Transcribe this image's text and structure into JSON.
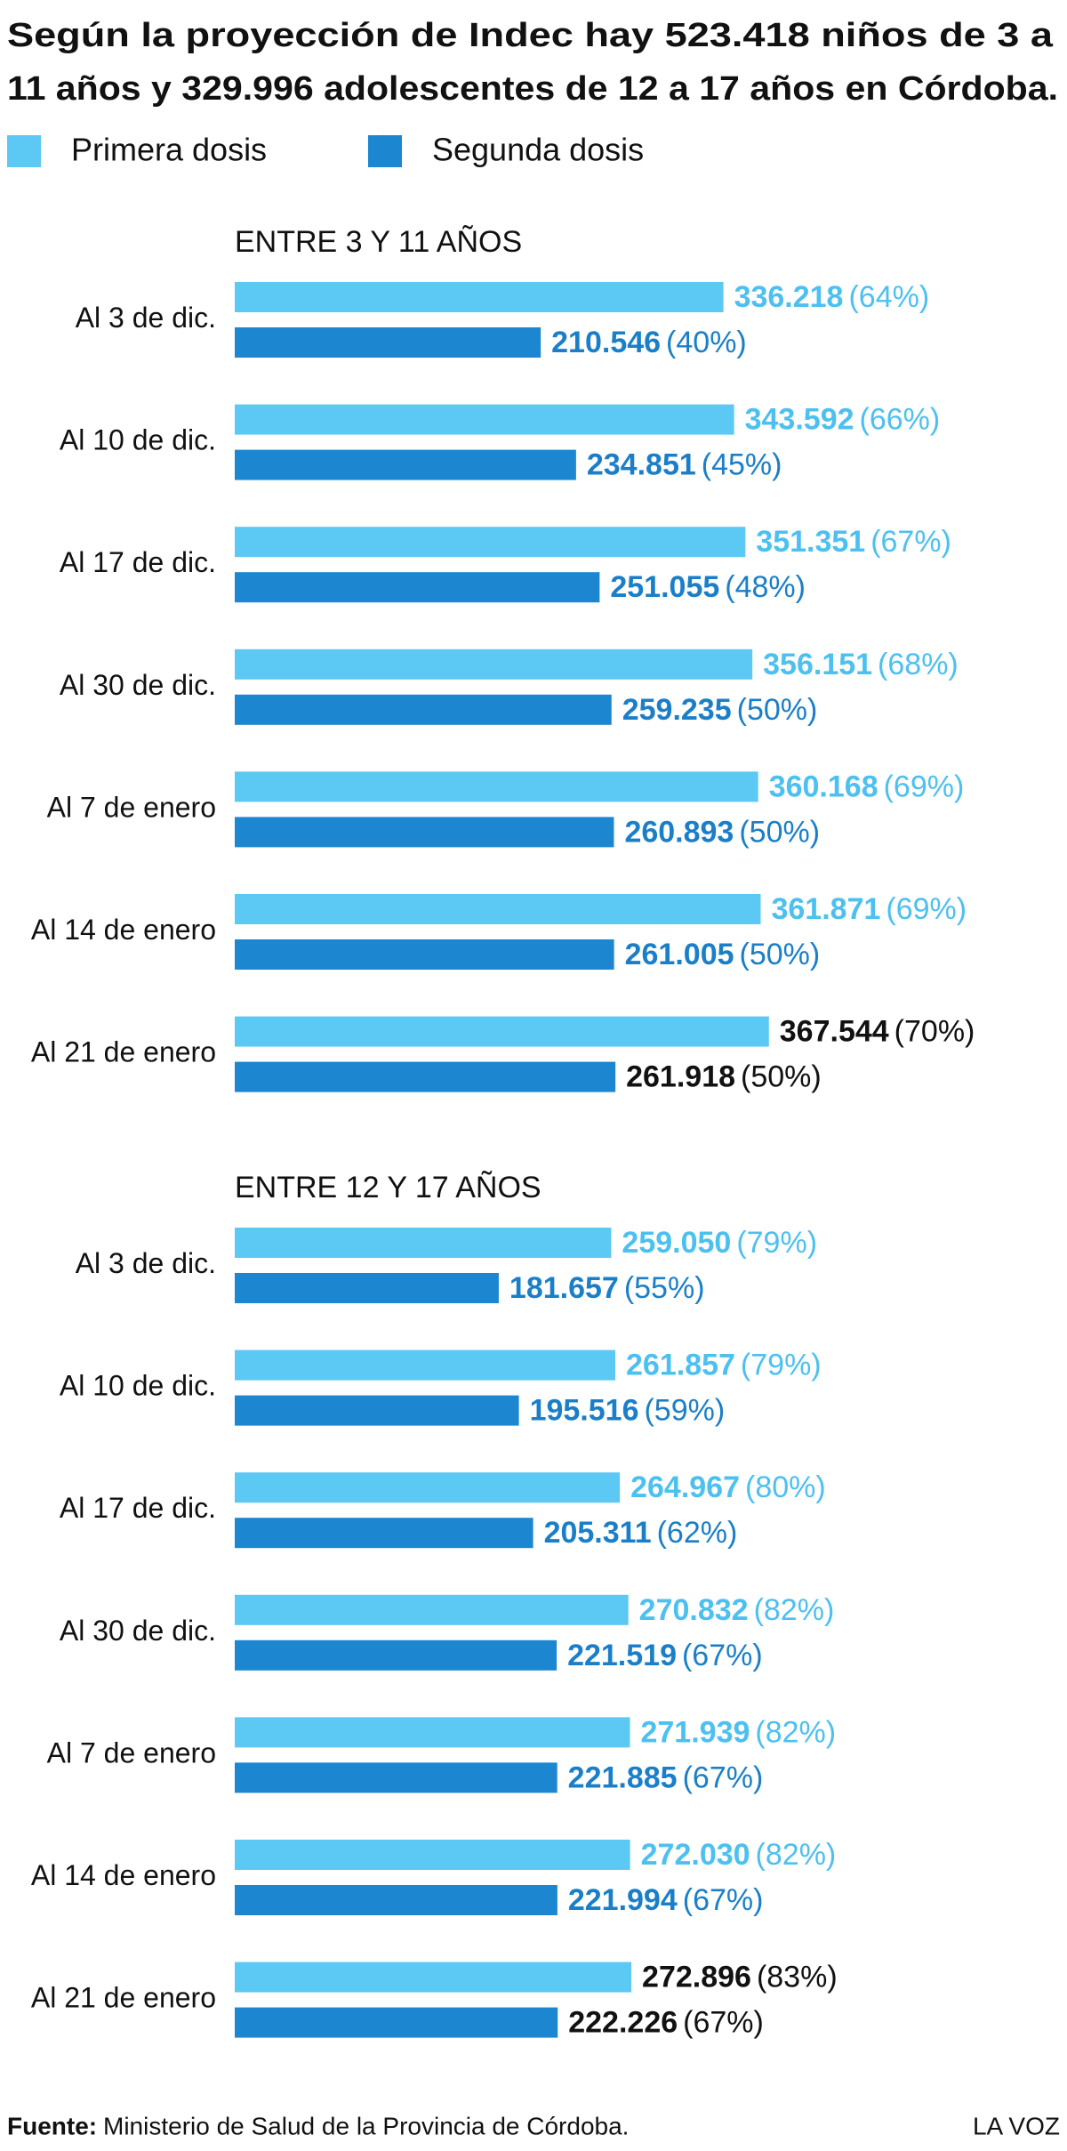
{
  "title_lines": [
    "Según la proyección de Indec hay 523.418 niños de 3 a",
    "11 años y 329.996 adolescentes de 12 a 17 años en Córdoba."
  ],
  "chart_data": [
    {
      "type": "bar",
      "orientation": "horizontal",
      "subtitle": "ENTRE 3 Y 11 AÑOS",
      "categories": [
        "Al 3 de dic.",
        "Al 10 de dic.",
        "Al 17 de dic.",
        "Al 30 de dic.",
        "Al 7 de enero",
        "Al 14 de enero",
        "Al 21 de enero"
      ],
      "xlim": [
        0,
        550000
      ],
      "highlight_index": 6,
      "highlight_color": "#111111",
      "series": [
        {
          "name": "Primera dosis",
          "color": "#5cc8f4",
          "label_color": "#4cc0f0",
          "values": [
            336218,
            343592,
            351351,
            356151,
            360168,
            361871,
            367544
          ],
          "value_labels": [
            "336.218",
            "343.592",
            "351.351",
            "356.151",
            "360.168",
            "361.871",
            "367.544"
          ],
          "share_labels": [
            "(64%)",
            "(66%)",
            "(67%)",
            "(68%)",
            "(69%)",
            "(69%)",
            "(70%)"
          ]
        },
        {
          "name": "Segunda dosis",
          "color": "#1c86d0",
          "label_color": "#1a7fc8",
          "values": [
            210546,
            234851,
            251055,
            259235,
            260893,
            261005,
            261918
          ],
          "value_labels": [
            "210.546",
            "234.851",
            "251.055",
            "259.235",
            "260.893",
            "261.005",
            "261.918"
          ],
          "share_labels": [
            "(40%)",
            "(45%)",
            "(48%)",
            "(50%)",
            "(50%)",
            "(50%)",
            "(50%)"
          ]
        }
      ]
    },
    {
      "type": "bar",
      "orientation": "horizontal",
      "subtitle": "ENTRE 12 Y 17 AÑOS",
      "categories": [
        "Al 3 de dic.",
        "Al 10 de dic.",
        "Al 17 de dic.",
        "Al 30 de dic.",
        "Al 7 de enero",
        "Al 14 de enero",
        "Al 21 de enero"
      ],
      "xlim": [
        0,
        550000
      ],
      "highlight_index": 6,
      "highlight_color": "#111111",
      "series": [
        {
          "color": "#5cc8f4",
          "label_color": "#4cc0f0",
          "values": [
            259050,
            261857,
            264967,
            270832,
            271939,
            272030,
            272896
          ],
          "value_labels": [
            "259.050",
            "261.857",
            "264.967",
            "270.832",
            "271.939",
            "272.030",
            "272.896"
          ],
          "share_labels": [
            "(79%)",
            "(79%)",
            "(80%)",
            "(82%)",
            "(82%)",
            "(82%)",
            "(83%)"
          ]
        },
        {
          "color": "#1c86d0",
          "label_color": "#1a7fc8",
          "values": [
            181657,
            195516,
            205311,
            221519,
            221885,
            221994,
            222226
          ],
          "value_labels": [
            "181.657",
            "195.516",
            "205.311",
            "221.519",
            "221.885",
            "221.994",
            "222.226"
          ],
          "share_labels": [
            "(55%)",
            "(59%)",
            "(62%)",
            "(67%)",
            "(67%)",
            "(67%)",
            "(67%)"
          ]
        }
      ]
    }
  ],
  "footer": {
    "source_label": "Fuente:",
    "source": "Ministerio de Salud de la Provincia de Córdoba.",
    "brand": "LA VOZ"
  }
}
